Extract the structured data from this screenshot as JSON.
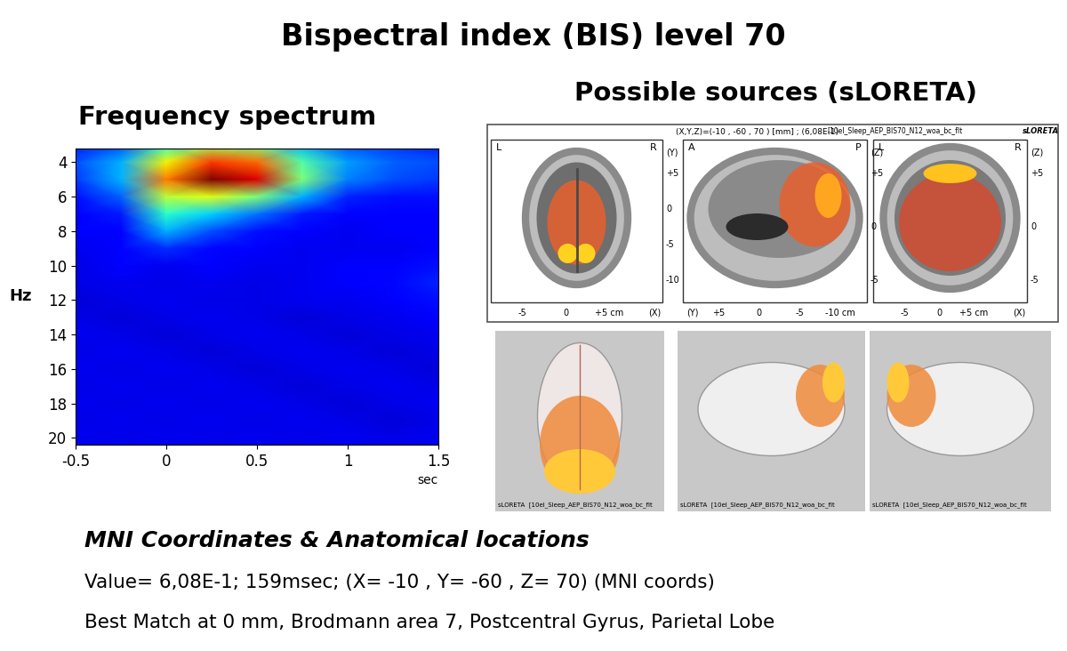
{
  "title": "Bispectral index (BIS) level 70",
  "chart_data": {
    "type": "heatmap",
    "title": "Frequency spectrum",
    "x_label": "sec",
    "y_label": "Hz",
    "x": [
      -0.5,
      -0.25,
      0,
      0.25,
      0.5,
      0.75,
      1,
      1.25,
      1.5
    ],
    "y": [
      3,
      4,
      5,
      6,
      7,
      8,
      9,
      10,
      11,
      12,
      13,
      14,
      15,
      16,
      17,
      18,
      19,
      20,
      21
    ],
    "cells": [
      [
        0.15,
        0.2,
        0.4,
        0.55,
        0.5,
        0.3,
        0.2,
        0.18,
        0.16
      ],
      [
        0.2,
        0.3,
        0.65,
        0.85,
        0.8,
        0.45,
        0.28,
        0.22,
        0.2
      ],
      [
        0.18,
        0.3,
        0.78,
        1.0,
        0.92,
        0.5,
        0.25,
        0.2,
        0.18
      ],
      [
        0.14,
        0.22,
        0.58,
        0.62,
        0.5,
        0.3,
        0.16,
        0.14,
        0.14
      ],
      [
        0.12,
        0.15,
        0.4,
        0.33,
        0.24,
        0.15,
        0.12,
        0.12,
        0.12
      ],
      [
        0.11,
        0.12,
        0.3,
        0.2,
        0.14,
        0.11,
        0.1,
        0.11,
        0.11
      ],
      [
        0.1,
        0.11,
        0.17,
        0.13,
        0.11,
        0.1,
        0.1,
        0.1,
        0.12
      ],
      [
        0.09,
        0.12,
        0.1,
        0.11,
        0.1,
        0.1,
        0.12,
        0.11,
        0.14
      ],
      [
        0.09,
        0.1,
        0.09,
        0.1,
        0.09,
        0.1,
        0.11,
        0.13,
        0.16
      ],
      [
        0.08,
        0.09,
        0.1,
        0.09,
        0.09,
        0.1,
        0.1,
        0.12,
        0.14
      ],
      [
        0.09,
        0.08,
        0.09,
        0.1,
        0.09,
        0.08,
        0.09,
        0.1,
        0.11
      ],
      [
        0.1,
        0.09,
        0.08,
        0.09,
        0.1,
        0.09,
        0.08,
        0.09,
        0.1
      ],
      [
        0.09,
        0.1,
        0.09,
        0.08,
        0.09,
        0.1,
        0.09,
        0.08,
        0.09
      ],
      [
        0.1,
        0.09,
        0.1,
        0.09,
        0.08,
        0.09,
        0.1,
        0.09,
        0.08
      ],
      [
        0.09,
        0.1,
        0.09,
        0.1,
        0.09,
        0.08,
        0.09,
        0.1,
        0.09
      ],
      [
        0.1,
        0.09,
        0.1,
        0.09,
        0.1,
        0.09,
        0.08,
        0.09,
        0.1
      ],
      [
        0.09,
        0.1,
        0.09,
        0.1,
        0.09,
        0.1,
        0.09,
        0.08,
        0.09
      ],
      [
        0.1,
        0.09,
        0.1,
        0.09,
        0.1,
        0.09,
        0.1,
        0.09,
        0.1
      ],
      [
        0.1,
        0.1,
        0.1,
        0.1,
        0.1,
        0.1,
        0.1,
        0.1,
        0.1
      ]
    ],
    "color_range": [
      0,
      1
    ],
    "xlim": [
      -0.5,
      1.5
    ],
    "ylim": [
      20.4,
      3.2
    ],
    "xticks": [
      -0.5,
      0,
      0.5,
      1,
      1.5
    ],
    "yticks": [
      4,
      6,
      8,
      10,
      12,
      14,
      16,
      18,
      20
    ]
  },
  "sources": {
    "title": "Possible sources (sLORETA)",
    "header": "(X,Y,Z)=(-10 , -60 , 70 ) [mm] ; (6,08E-1)",
    "file": "[10el_Sleep_AEP_BIS70_N12_woa_bc_flt",
    "logo": "sLORETA",
    "slices": [
      {
        "left_label": "L",
        "right_label": "R",
        "side_axis": "(Y)",
        "side_ticks": [
          "+5",
          "0",
          "-5",
          "-10"
        ],
        "bottom_ticks": [
          "-5",
          "0",
          "+5 cm"
        ],
        "bottom_axis": "(X)"
      },
      {
        "left_label": "A",
        "right_label": "P",
        "side_axis": "(Z)",
        "side_ticks": [
          "+5",
          "0",
          "-5"
        ],
        "bottom_ticks": [
          "+5",
          "0",
          "-5",
          "-10 cm"
        ],
        "bottom_axis": "(Y)"
      },
      {
        "left_label": "L",
        "right_label": "R",
        "side_axis": "(Z)",
        "side_ticks": [
          "+5",
          "0",
          "-5"
        ],
        "bottom_ticks": [
          "-5",
          "0",
          "+5 cm"
        ],
        "bottom_axis": "(X)"
      }
    ],
    "render_captions": [
      "sLORETA  [10el_Sleep_AEP_BIS70_N12_woa_bc_flt",
      "sLORETA  [10el_Sleep_AEP_BIS70_N12_woa_bc_flt",
      "sLORETA  [10el_Sleep_AEP_BIS70_N12_woa_bc_flt"
    ]
  },
  "locations": {
    "title": "MNI Coordinates & Anatomical locations",
    "lines": [
      "Value= 6,08E-1; 159msec; (X= -10 , Y= -60 , Z= 70) (MNI coords)",
      "Best Match at 0 mm, Brodmann area 7, Postcentral Gyrus, Parietal Lobe"
    ]
  }
}
